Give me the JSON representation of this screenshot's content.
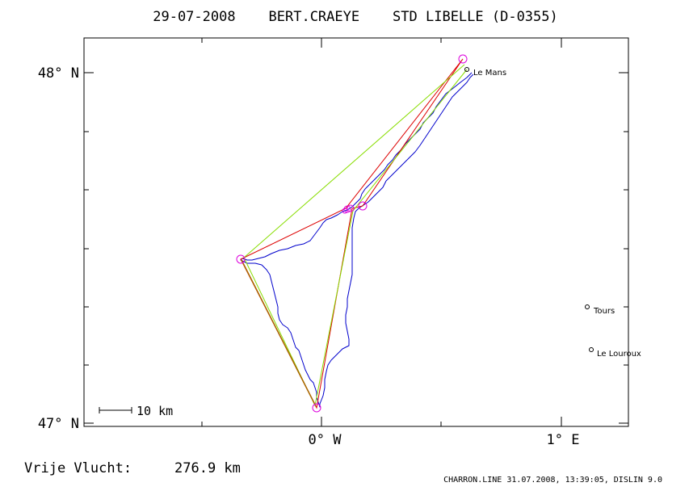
{
  "title": "29-07-2008    BERT.CRAEYE    STD LIBELLE (D-0355)",
  "axes": {
    "y_ticks": [
      "48° N",
      "47° N"
    ],
    "x_ticks": [
      "0° W",
      "1° E"
    ]
  },
  "scale_bar": {
    "label": "10 km"
  },
  "places": [
    {
      "name": "Le Mans",
      "lon": 0.62,
      "lat": 48.0
    },
    {
      "name": "Tours",
      "lon": 1.1,
      "lat": 47.33
    },
    {
      "name": "Le Louroux",
      "lon": 1.12,
      "lat": 47.21
    }
  ],
  "result": {
    "label": "Vrije Vlucht:",
    "value": "276.9 km"
  },
  "footer": "CHARRON.LINE 31.07.2008, 13:39:05, DISLIN 9.0",
  "colors": {
    "track": "#0000cc",
    "task_line": "#dd0000",
    "optimized_line": "#88dd00",
    "turnpoint": "#dd00dd",
    "frame": "#000000"
  },
  "turnpoints": [
    {
      "lon": 0.59,
      "lat": 48.04
    },
    {
      "lon": 0.17,
      "lat": 47.62
    },
    {
      "lon": -0.33,
      "lat": 47.47
    },
    {
      "lon": -0.03,
      "lat": 47.05
    },
    {
      "lon": 0.1,
      "lat": 47.61
    }
  ]
}
